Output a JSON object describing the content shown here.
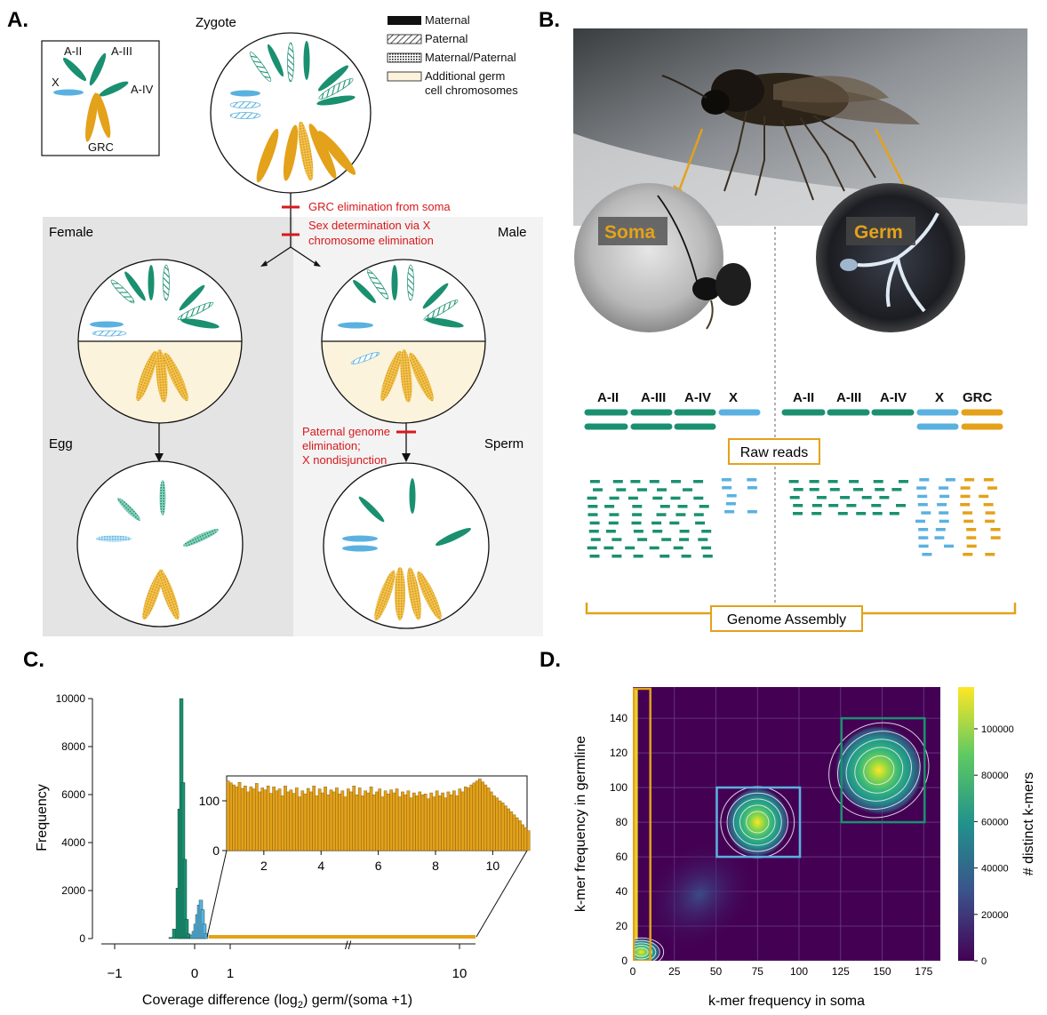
{
  "panels": {
    "a": "A.",
    "b": "B.",
    "c": "C.",
    "d": "D."
  },
  "colors": {
    "autosome": "#1a9070",
    "x": "#5ab1e0",
    "grc": "#e3a21a",
    "red": "#d7191c",
    "soma_box": "#5ab1e0",
    "germ_box": "#1a9070",
    "grc_box": "#e3a21a"
  },
  "panel_a": {
    "key_labels": {
      "a2": "A-II",
      "a3": "A-III",
      "a4": "A-IV",
      "x": "X",
      "grc": "GRC"
    },
    "legend": {
      "maternal": "Maternal",
      "paternal": "Paternal",
      "mat_pat": "Maternal/Paternal",
      "additional1": "Additional germ",
      "additional2": "cell chromosomes"
    },
    "zygote": "Zygote",
    "steps": {
      "grc_elim": "GRC elimination from soma",
      "sexdet1": "Sex determination via X",
      "sexdet2": "chromosome elimination",
      "pge1": "Paternal genome",
      "pge2": "elimination;",
      "pge3": "X nondisjunction"
    },
    "labels": {
      "female": "Female",
      "male": "Male",
      "egg": "Egg",
      "sperm": "Sperm"
    }
  },
  "panel_b": {
    "soma": "Soma",
    "germ": "Germ",
    "soma_chroms": [
      "A-II",
      "A-III",
      "A-IV",
      "X"
    ],
    "germ_chroms": [
      "A-II",
      "A-III",
      "A-IV",
      "X",
      "GRC"
    ],
    "raw_reads": "Raw reads",
    "assembly": "Genome Assembly"
  },
  "panel_c": {
    "ylabel": "Frequency",
    "xlabel": "Coverage difference (log",
    "xlabel_sub": "2",
    "xlabel_end": ") germ/(soma +1)",
    "yticks": [
      "0",
      "2000",
      "4000",
      "6000",
      "8000",
      "10000"
    ],
    "xticks": [
      "−1",
      "0",
      "1",
      "10"
    ],
    "inset_yticks": [
      "0",
      "100"
    ],
    "inset_xticks": [
      "2",
      "4",
      "6",
      "8",
      "10"
    ],
    "break_mark": "//"
  },
  "panel_d": {
    "xlabel": "k-mer frequency in soma",
    "ylabel": "k-mer frequency in germline",
    "colorbar_label": "# distinct k-mers",
    "xticks": [
      "0",
      "25",
      "50",
      "75",
      "100",
      "125",
      "150",
      "175"
    ],
    "yticks": [
      "0",
      "20",
      "40",
      "60",
      "80",
      "100",
      "120",
      "140"
    ],
    "cbar_ticks": [
      "0",
      "20000",
      "40000",
      "60000",
      "80000",
      "100000"
    ]
  },
  "chart_data": [
    {
      "type": "bar",
      "title": "",
      "xlabel": "Coverage difference (log2) germ/(soma +1)",
      "ylabel": "Frequency",
      "ylim": [
        0,
        10000
      ],
      "series": [
        {
          "name": "",
          "x": [
            -0.7,
            -0.6,
            -0.5,
            -0.45,
            -0.4,
            -0.35,
            -0.3,
            -0.25,
            -0.2,
            -0.15
          ],
          "values": [
            50,
            400,
            2100,
            5400,
            10000,
            6500,
            3300,
            800,
            200,
            50
          ]
        },
        {
          "name": "",
          "x": [
            -0.1,
            -0.05,
            0,
            0.05,
            0.1,
            0.15,
            0.2,
            0.25,
            0.3
          ],
          "values": [
            150,
            300,
            600,
            1000,
            1400,
            1600,
            1200,
            600,
            200
          ]
        }
      ]
    },
    {
      "type": "bar",
      "title": "",
      "xlabel": "",
      "ylabel": "",
      "xlim": [
        0.7,
        11.2
      ],
      "ylim": [
        0,
        150
      ],
      "x_start": 0.7,
      "bin_width": 0.1,
      "values": [
        140,
        136,
        132,
        128,
        137,
        125,
        130,
        118,
        128,
        124,
        135,
        118,
        126,
        122,
        130,
        115,
        128,
        120,
        124,
        110,
        130,
        118,
        122,
        115,
        126,
        108,
        120,
        114,
        125,
        118,
        130,
        110,
        124,
        116,
        128,
        112,
        122,
        118,
        126,
        114,
        120,
        108,
        124,
        118,
        130,
        112,
        126,
        110,
        120,
        116,
        128,
        112,
        118,
        124,
        108,
        120,
        114,
        122,
        116,
        124,
        108,
        118,
        112,
        120,
        106,
        116,
        110,
        118,
        112,
        114,
        104,
        116,
        108,
        120,
        110,
        116,
        106,
        118,
        112,
        120,
        110,
        124,
        118,
        128,
        126,
        132,
        136,
        140,
        144,
        138,
        132,
        126,
        118,
        110,
        106,
        100,
        96,
        90,
        84,
        78,
        72,
        66,
        60,
        52,
        46,
        40
      ]
    },
    {
      "type": "heatmap",
      "title": "",
      "xlabel": "k-mer frequency in soma",
      "ylabel": "k-mer frequency in germline",
      "xlim": [
        0,
        185
      ],
      "ylim": [
        0,
        158
      ],
      "zlim": [
        0,
        118000
      ],
      "clusters": [
        {
          "x": 5,
          "y": 5,
          "peak": 118000
        },
        {
          "x": 75,
          "y": 80,
          "peak": 90000
        },
        {
          "x": 148,
          "y": 110,
          "peak": 105000
        }
      ],
      "boxes": [
        {
          "name": "",
          "x": [
            0,
            10
          ],
          "y": [
            0,
            157
          ],
          "color": "#e3a21a"
        },
        {
          "name": "",
          "x": [
            50,
            100
          ],
          "y": [
            60,
            100
          ],
          "color": "#5ab1e0"
        },
        {
          "name": "",
          "x": [
            125,
            175
          ],
          "y": [
            80,
            140
          ],
          "color": "#1a9070"
        }
      ]
    }
  ]
}
